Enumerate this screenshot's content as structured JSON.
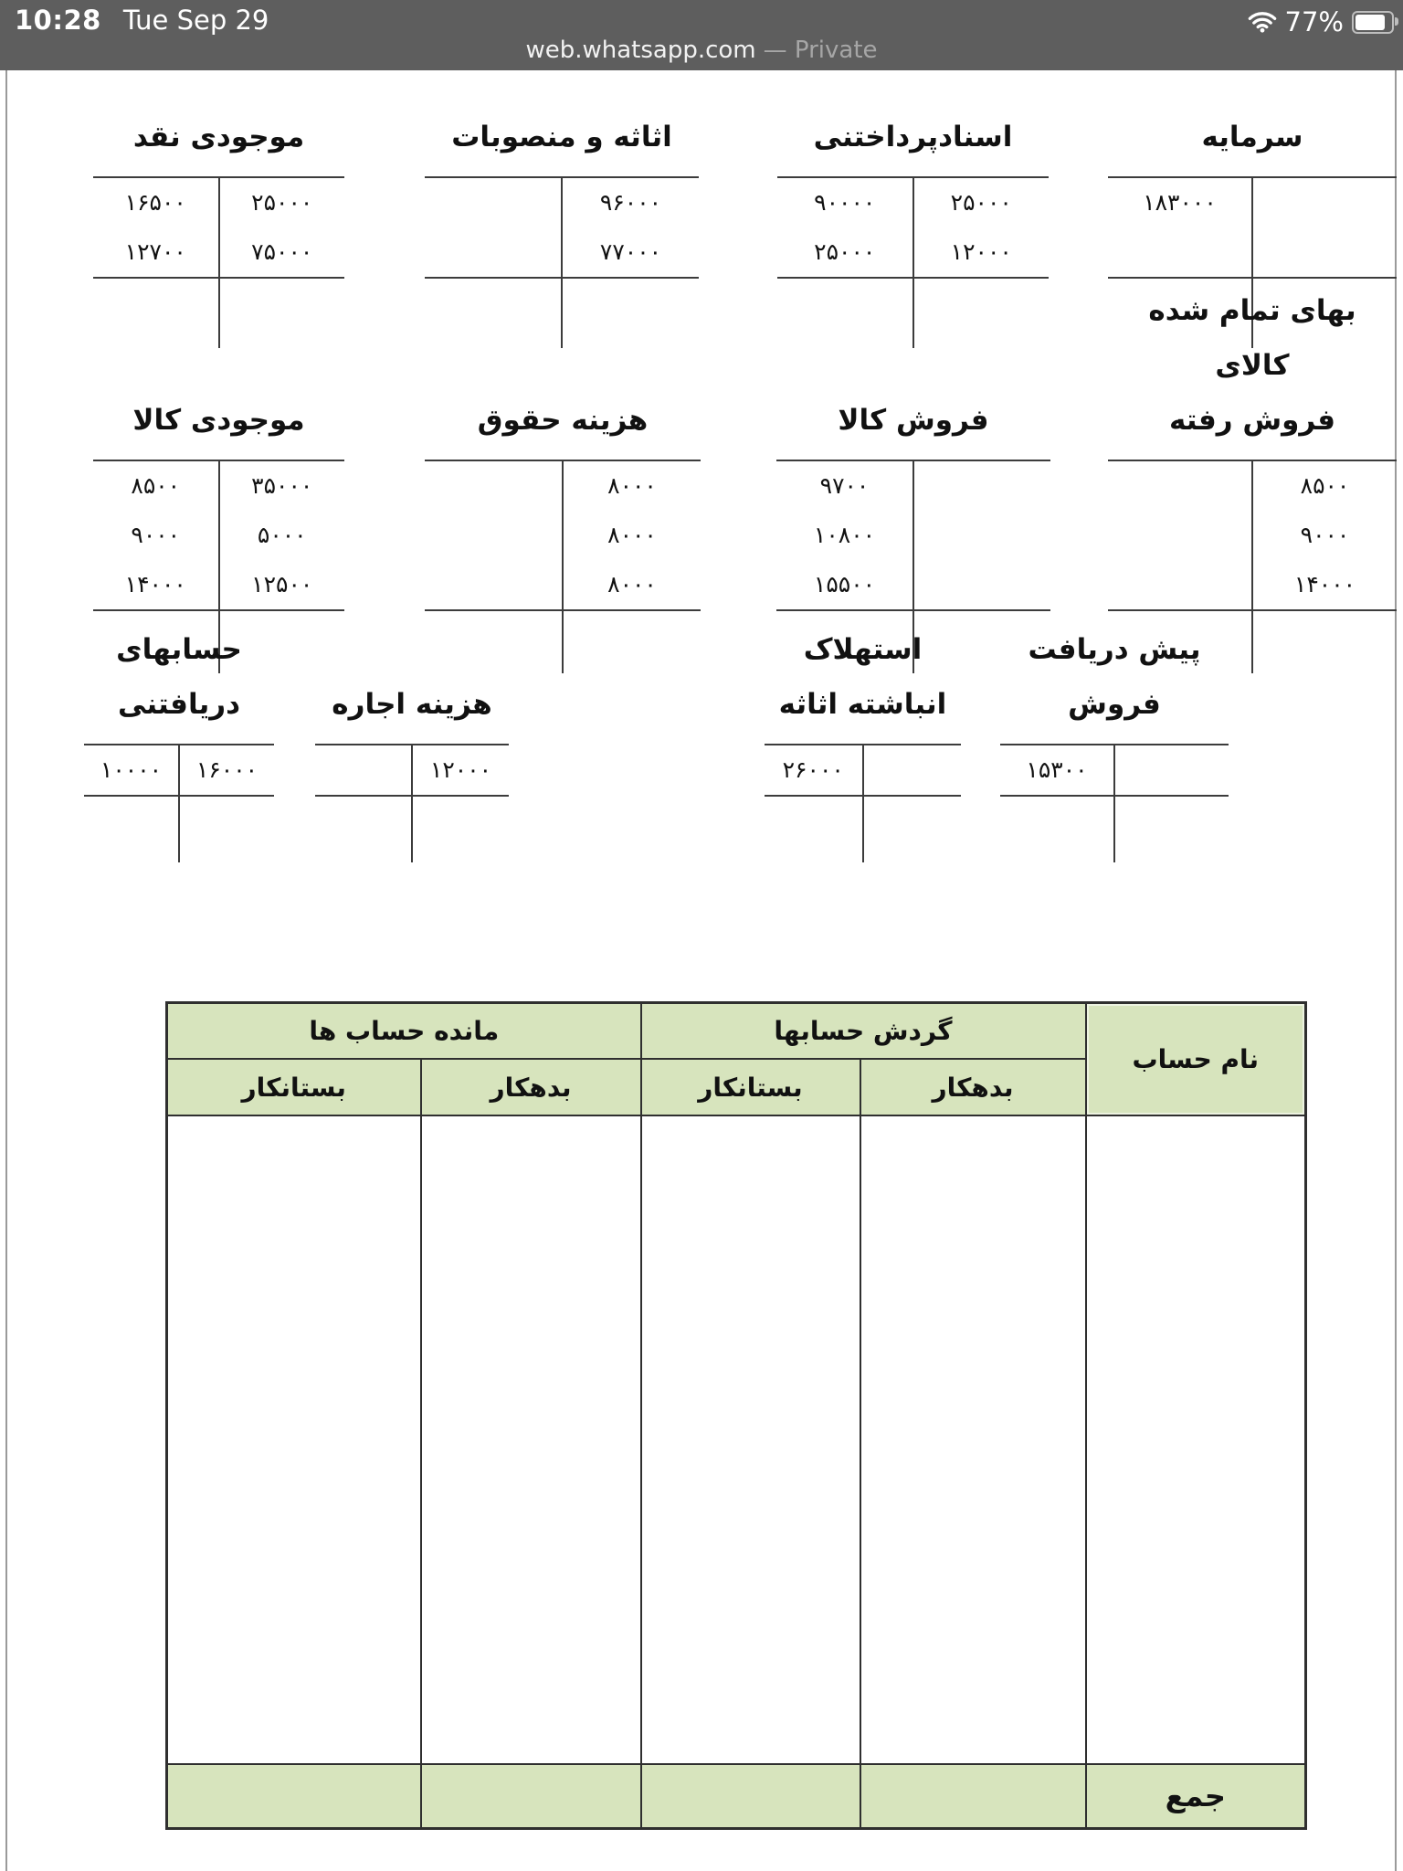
{
  "status_bar": {
    "time": "10:28",
    "date": "Tue Sep 29",
    "battery_percent": "77%",
    "wifi_icon": "wifi-icon",
    "battery_icon": "battery-icon"
  },
  "address_bar": {
    "url": "web.whatsapp.com",
    "privacy_suffix": "— Private"
  },
  "t_account_rows": [
    [
      {
        "id": "capital",
        "title_lines": [
          "سرمایه"
        ],
        "right": [],
        "left": [
          "۱۸۳۰۰۰"
        ]
      },
      {
        "id": "notes-payable",
        "title_lines": [
          "اسنادپرداختنی"
        ],
        "right": [
          "۲۵۰۰۰",
          "۱۲۰۰۰"
        ],
        "left": [
          "۹۰۰۰۰",
          "۲۵۰۰۰"
        ]
      },
      {
        "id": "furniture-and-fixtures",
        "title_lines": [
          "اثاثه و منصوبات"
        ],
        "right": [
          "۹۶۰۰۰",
          "۷۷۰۰۰"
        ],
        "left": []
      },
      {
        "id": "cash",
        "title_lines": [
          "موجودی نقد"
        ],
        "right": [
          "۲۵۰۰۰",
          "۷۵۰۰۰"
        ],
        "left": [
          "۱۶۵۰۰",
          "۱۲۷۰۰"
        ]
      }
    ],
    [
      {
        "id": "cost-of-goods-sold",
        "title_lines": [
          "بهای تمام شده کالای",
          "فروش رفته"
        ],
        "right": [
          "۸۵۰۰",
          "۹۰۰۰",
          "۱۴۰۰۰"
        ],
        "left": []
      },
      {
        "id": "sales-of-goods",
        "title_lines": [
          "فروش کالا"
        ],
        "right": [],
        "left": [
          "۹۷۰۰",
          "۱۰۸۰۰",
          "۱۵۵۰۰"
        ]
      },
      {
        "id": "salary-expense",
        "title_lines": [
          "هزینه حقوق"
        ],
        "right": [
          "۸۰۰۰",
          "۸۰۰۰",
          "۸۰۰۰"
        ],
        "left": []
      },
      {
        "id": "merchandise-inventory",
        "title_lines": [
          "موجودی کالا"
        ],
        "right": [
          "۳۵۰۰۰",
          "۵۰۰۰",
          "۱۲۵۰۰"
        ],
        "left": [
          "۸۵۰۰",
          "۹۰۰۰",
          "۱۴۰۰۰"
        ]
      }
    ],
    [
      {
        "id": "unearned-sales-revenue",
        "title_lines": [
          "پیش دریافت فروش"
        ],
        "right": [],
        "left": [
          "۱۵۳۰۰"
        ]
      },
      {
        "id": "accumulated-depreciation-furniture",
        "title_lines": [
          "استهلاک انباشته اثاثه"
        ],
        "right": [],
        "left": [
          "۲۶۰۰۰"
        ]
      },
      {
        "id": "rent-expense",
        "title_lines": [
          "هزینه اجاره"
        ],
        "right": [
          "۱۲۰۰۰"
        ],
        "left": []
      },
      {
        "id": "accounts-receivable",
        "title_lines": [
          "حسابهای دریافتنی"
        ],
        "right": [
          "۱۶۰۰۰"
        ],
        "left": [
          "۱۰۰۰۰"
        ]
      }
    ]
  ],
  "summary_table": {
    "account_name_header": "نام حساب",
    "turnover_group_header": "گردش حسابها",
    "balance_group_header": "مانده حساب ها",
    "turnover_debit_header": "بدهکار",
    "turnover_credit_header": "بستانکار",
    "balance_debit_header": "بدهکار",
    "balance_credit_header": "بستانکار",
    "total_label": "جمع"
  }
}
